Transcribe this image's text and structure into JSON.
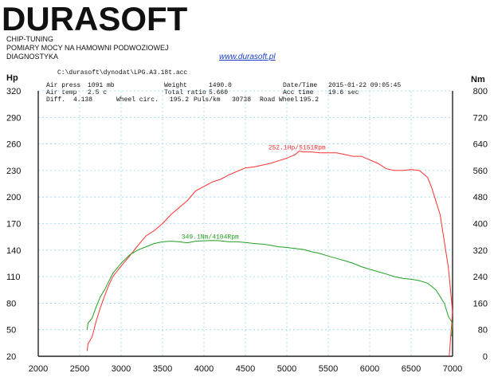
{
  "header": {
    "logo": "DURASOFT",
    "lines": [
      "CHIP-TUNING",
      "POMIARY MOCY NA HAMOWNI PODWOZIOWEJ",
      "DIAGNOSTYKA"
    ],
    "website": "www.durasoft.pl"
  },
  "info": {
    "file": "C:\\durasoft\\dynodat\\LPG.A3.18t.acc",
    "rows": [
      [
        "Air press",
        "1091 mb",
        "Weight",
        "1490.0",
        "Date/Time",
        "2015-01-22 09:05:45"
      ],
      [
        "Air temp",
        "2.5 c",
        "Total ratio",
        "5.660",
        "Acc time",
        "19.6 sec"
      ],
      [
        "Diff.",
        "4.138",
        "Wheel circ.",
        "195.2",
        "Puls/km",
        "30738",
        "Road Wheel",
        "195.2"
      ]
    ]
  },
  "chart_data": {
    "type": "line",
    "xlabel": "",
    "ylabel_left": "Hp",
    "ylabel_right": "Nm",
    "xlim": [
      2000,
      7000
    ],
    "ylim_left": [
      20,
      320
    ],
    "ylim_right": [
      0,
      800
    ],
    "x_ticks": [
      2000,
      2500,
      3000,
      3500,
      4000,
      4500,
      5000,
      5500,
      6000,
      6500,
      7000
    ],
    "y_ticks_left": [
      20,
      50,
      80,
      110,
      140,
      170,
      200,
      230,
      260,
      290,
      320
    ],
    "y_ticks_right": [
      0,
      80,
      160,
      240,
      320,
      400,
      480,
      560,
      640,
      720,
      800
    ],
    "grid": true,
    "series": [
      {
        "name": "",
        "axis": "left",
        "color": "#ff3030",
        "annotation": "252.1Hp/5151Rpm",
        "points": [
          [
            2590,
            26
          ],
          [
            2600,
            34
          ],
          [
            2650,
            42
          ],
          [
            2700,
            60
          ],
          [
            2750,
            75
          ],
          [
            2800,
            88
          ],
          [
            2850,
            100
          ],
          [
            2900,
            110
          ],
          [
            3000,
            122
          ],
          [
            3100,
            133
          ],
          [
            3200,
            145
          ],
          [
            3300,
            156
          ],
          [
            3400,
            162
          ],
          [
            3500,
            170
          ],
          [
            3600,
            180
          ],
          [
            3700,
            188
          ],
          [
            3800,
            196
          ],
          [
            3900,
            207
          ],
          [
            4000,
            212
          ],
          [
            4100,
            217
          ],
          [
            4200,
            220
          ],
          [
            4300,
            225
          ],
          [
            4400,
            229
          ],
          [
            4500,
            233
          ],
          [
            4600,
            234
          ],
          [
            4700,
            236
          ],
          [
            4800,
            238
          ],
          [
            4900,
            241
          ],
          [
            5000,
            244
          ],
          [
            5100,
            248
          ],
          [
            5151,
            252
          ],
          [
            5200,
            251
          ],
          [
            5300,
            251
          ],
          [
            5400,
            250
          ],
          [
            5500,
            250
          ],
          [
            5600,
            250
          ],
          [
            5700,
            248
          ],
          [
            5800,
            246
          ],
          [
            5900,
            246
          ],
          [
            6000,
            242
          ],
          [
            6100,
            238
          ],
          [
            6200,
            232
          ],
          [
            6300,
            230
          ],
          [
            6400,
            230
          ],
          [
            6500,
            231
          ],
          [
            6600,
            230
          ],
          [
            6700,
            222
          ],
          [
            6750,
            210
          ],
          [
            6800,
            195
          ],
          [
            6850,
            180
          ],
          [
            6900,
            150
          ],
          [
            6950,
            120
          ],
          [
            7000,
            70
          ],
          [
            6980,
            45
          ],
          [
            6960,
            20
          ]
        ]
      },
      {
        "name": "",
        "axis": "right",
        "color": "#22a022",
        "annotation": "349.1Nm/4104Rpm",
        "points": [
          [
            2590,
            80
          ],
          [
            2600,
            100
          ],
          [
            2650,
            115
          ],
          [
            2700,
            150
          ],
          [
            2750,
            180
          ],
          [
            2800,
            200
          ],
          [
            2900,
            250
          ],
          [
            3000,
            280
          ],
          [
            3100,
            305
          ],
          [
            3200,
            320
          ],
          [
            3300,
            330
          ],
          [
            3400,
            340
          ],
          [
            3500,
            345
          ],
          [
            3600,
            347
          ],
          [
            3700,
            345
          ],
          [
            3800,
            342
          ],
          [
            3900,
            347
          ],
          [
            4000,
            348
          ],
          [
            4104,
            349
          ],
          [
            4200,
            348
          ],
          [
            4300,
            345
          ],
          [
            4400,
            345
          ],
          [
            4500,
            343
          ],
          [
            4600,
            340
          ],
          [
            4700,
            338
          ],
          [
            4800,
            335
          ],
          [
            4900,
            330
          ],
          [
            5000,
            328
          ],
          [
            5100,
            325
          ],
          [
            5200,
            322
          ],
          [
            5300,
            315
          ],
          [
            5400,
            310
          ],
          [
            5500,
            302
          ],
          [
            5600,
            295
          ],
          [
            5700,
            288
          ],
          [
            5800,
            280
          ],
          [
            5900,
            270
          ],
          [
            6000,
            262
          ],
          [
            6100,
            255
          ],
          [
            6200,
            248
          ],
          [
            6300,
            240
          ],
          [
            6400,
            235
          ],
          [
            6500,
            232
          ],
          [
            6600,
            228
          ],
          [
            6700,
            220
          ],
          [
            6800,
            200
          ],
          [
            6900,
            160
          ],
          [
            6950,
            120
          ],
          [
            7000,
            100
          ],
          [
            6990,
            60
          ]
        ]
      }
    ]
  }
}
